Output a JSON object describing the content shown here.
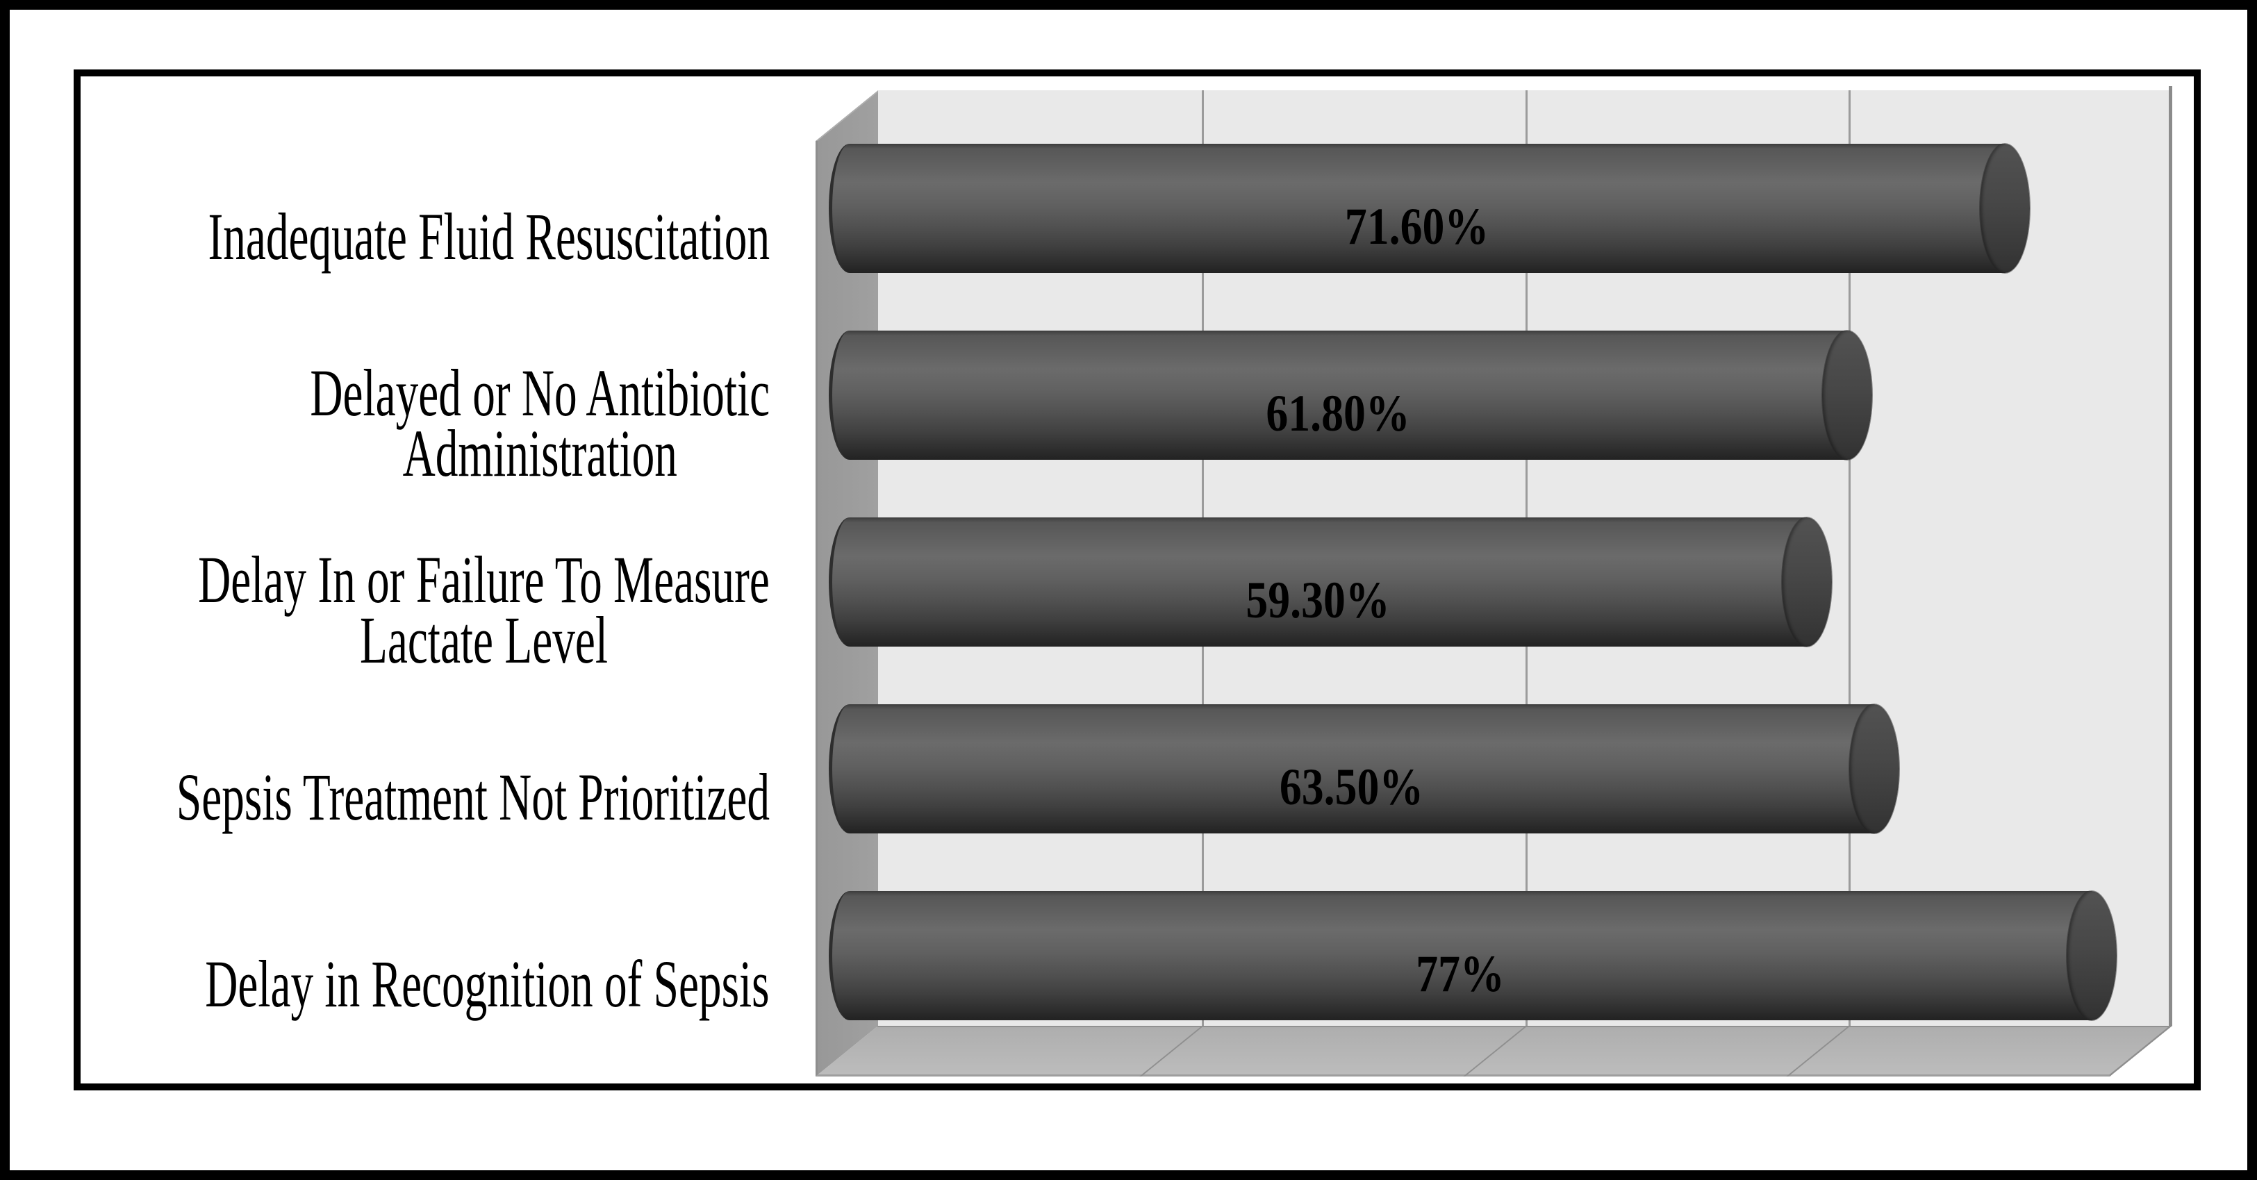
{
  "chart_data": {
    "type": "bar",
    "orientation": "horizontal",
    "style": "3d-cylinder",
    "title": "",
    "xlabel": "",
    "ylabel": "",
    "categories": [
      [
        "Inadequate Fluid Resuscitation"
      ],
      [
        "Delayed or No Antibiotic",
        "Administration"
      ],
      [
        "Delay In or Failure To Measure",
        "Lactate Level"
      ],
      [
        "Sepsis Treatment Not Prioritized"
      ],
      [
        "Delay in Recognition of Sepsis"
      ]
    ],
    "values": [
      71.6,
      61.8,
      59.3,
      63.5,
      77
    ],
    "value_labels": [
      "71.60%",
      "61.80%",
      "59.30%",
      "63.50%",
      "77%"
    ],
    "xlim": [
      0,
      80
    ],
    "gridline_step": 20,
    "grid": "on",
    "legend": "none",
    "axis_tick_labels_visible": false
  },
  "colors": {
    "background": "#ffffff",
    "frame": "#000000",
    "back_wall": "#e9e9e9",
    "side_wall": "#9c9c9c",
    "floor": "#b5b5b5",
    "gridline": "#9b9b9b",
    "wall_edge": "#8b8b8b",
    "bar_light": "#6b6b6b",
    "bar_mid": "#515151",
    "bar_dark": "#2a2a2a",
    "label_text": "#000000"
  }
}
